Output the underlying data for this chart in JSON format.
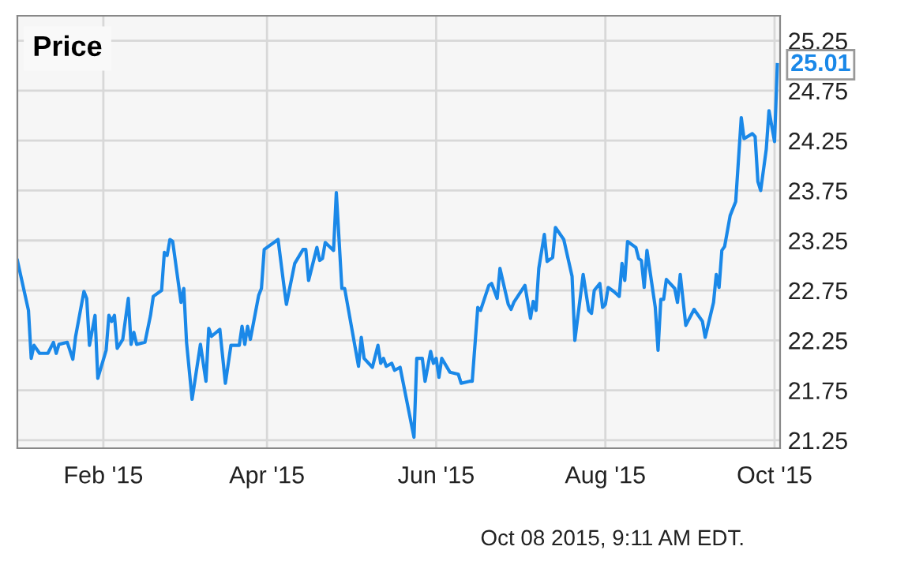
{
  "chart_data": {
    "type": "line",
    "title": "Price",
    "x": [
      "2015-01-01",
      "2015-01-05",
      "2015-01-06",
      "2015-01-07",
      "2015-01-09",
      "2015-01-12",
      "2015-01-14",
      "2015-01-15",
      "2015-01-16",
      "2015-01-19",
      "2015-01-21",
      "2015-01-22",
      "2015-01-25",
      "2015-01-26",
      "2015-01-27",
      "2015-01-29",
      "2015-01-30",
      "2015-02-02",
      "2015-02-03",
      "2015-02-04",
      "2015-02-05",
      "2015-02-06",
      "2015-02-08",
      "2015-02-10",
      "2015-02-11",
      "2015-02-12",
      "2015-02-13",
      "2015-02-16",
      "2015-02-18",
      "2015-02-19",
      "2015-02-22",
      "2015-02-23",
      "2015-02-24",
      "2015-02-25",
      "2015-02-26",
      "2015-03-01",
      "2015-03-02",
      "2015-03-03",
      "2015-03-05",
      "2015-03-08",
      "2015-03-10",
      "2015-03-11",
      "2015-03-12",
      "2015-03-15",
      "2015-03-17",
      "2015-03-19",
      "2015-03-22",
      "2015-03-23",
      "2015-03-24",
      "2015-03-25",
      "2015-03-26",
      "2015-03-29",
      "2015-03-30",
      "2015-03-31",
      "2015-04-05",
      "2015-04-07",
      "2015-04-08",
      "2015-04-11",
      "2015-04-14",
      "2015-04-15",
      "2015-04-16",
      "2015-04-19",
      "2015-04-20",
      "2015-04-21",
      "2015-04-22",
      "2015-04-25",
      "2015-04-26",
      "2015-04-28",
      "2015-04-29",
      "2015-05-04",
      "2015-05-05",
      "2015-05-06",
      "2015-05-09",
      "2015-05-11",
      "2015-05-12",
      "2015-05-13",
      "2015-05-14",
      "2015-05-16",
      "2015-05-17",
      "2015-05-19",
      "2015-05-24",
      "2015-05-25",
      "2015-05-27",
      "2015-05-28",
      "2015-05-30",
      "2015-05-31",
      "2015-06-01",
      "2015-06-02",
      "2015-06-03",
      "2015-06-06",
      "2015-06-09",
      "2015-06-10",
      "2015-06-13",
      "2015-06-14",
      "2015-06-16",
      "2015-06-17",
      "2015-06-20",
      "2015-06-21",
      "2015-06-23",
      "2015-06-24",
      "2015-06-27",
      "2015-06-28",
      "2015-06-29",
      "2015-07-03",
      "2015-07-05",
      "2015-07-06",
      "2015-07-07",
      "2015-07-08",
      "2015-07-10",
      "2015-07-11",
      "2015-07-13",
      "2015-07-14",
      "2015-07-17",
      "2015-07-20",
      "2015-07-21",
      "2015-07-24",
      "2015-07-26",
      "2015-07-27",
      "2015-07-28",
      "2015-07-30",
      "2015-07-31",
      "2015-08-01",
      "2015-08-02",
      "2015-08-04",
      "2015-08-06",
      "2015-08-07",
      "2015-08-08",
      "2015-08-09",
      "2015-08-12",
      "2015-08-13",
      "2015-08-14",
      "2015-08-15",
      "2015-08-16",
      "2015-08-19",
      "2015-08-20",
      "2015-08-21",
      "2015-08-22",
      "2015-08-23",
      "2015-08-26",
      "2015-08-27",
      "2015-08-28",
      "2015-08-30",
      "2015-09-02",
      "2015-09-05",
      "2015-09-06",
      "2015-09-09",
      "2015-09-10",
      "2015-09-11",
      "2015-09-12",
      "2015-09-13",
      "2015-09-15",
      "2015-09-17",
      "2015-09-19",
      "2015-09-20",
      "2015-09-23",
      "2015-09-24",
      "2015-09-25",
      "2015-09-26",
      "2015-09-28",
      "2015-09-29",
      "2015-10-01",
      "2015-10-02"
    ],
    "values": [
      23.05,
      22.55,
      22.07,
      22.2,
      22.12,
      22.12,
      22.23,
      22.12,
      22.21,
      22.23,
      22.06,
      22.29,
      22.74,
      22.67,
      22.2,
      22.5,
      21.87,
      22.15,
      22.5,
      22.44,
      22.5,
      22.17,
      22.26,
      22.67,
      22.21,
      22.33,
      22.21,
      22.23,
      22.5,
      22.69,
      22.75,
      23.13,
      23.1,
      23.26,
      23.24,
      22.63,
      22.77,
      22.23,
      21.66,
      22.21,
      21.84,
      22.37,
      22.29,
      22.36,
      21.82,
      22.2,
      22.2,
      22.39,
      22.21,
      22.39,
      22.26,
      22.7,
      22.77,
      23.16,
      23.26,
      22.82,
      22.61,
      23.02,
      23.16,
      23.16,
      22.85,
      23.18,
      23.05,
      23.07,
      23.23,
      23.15,
      23.73,
      22.77,
      22.77,
      21.99,
      22.28,
      22.07,
      21.98,
      22.2,
      22.02,
      22.07,
      21.99,
      22.02,
      21.95,
      21.98,
      21.28,
      22.07,
      22.07,
      21.84,
      22.14,
      22.02,
      22.07,
      21.88,
      22.07,
      21.93,
      21.91,
      21.82,
      21.84,
      21.84,
      22.58,
      22.55,
      22.8,
      22.82,
      22.67,
      22.97,
      22.61,
      22.56,
      22.63,
      22.8,
      22.47,
      22.64,
      22.55,
      22.97,
      23.31,
      23.04,
      23.08,
      23.38,
      23.26,
      22.89,
      22.25,
      22.91,
      22.55,
      22.52,
      22.75,
      22.82,
      22.58,
      22.61,
      22.78,
      22.74,
      22.69,
      23.02,
      22.85,
      23.24,
      23.18,
      23.07,
      23.05,
      22.78,
      23.15,
      22.58,
      22.15,
      22.66,
      22.66,
      22.86,
      22.77,
      22.63,
      22.91,
      22.4,
      22.56,
      22.44,
      22.28,
      22.63,
      22.91,
      22.78,
      23.15,
      23.19,
      23.5,
      23.64,
      24.48,
      24.27,
      24.32,
      24.29,
      23.84,
      23.75,
      24.16,
      24.55,
      24.24,
      25.01
    ],
    "color": "#1a88e8",
    "xlim": [
      "2015-01-01",
      "2015-10-03"
    ],
    "xticks": [
      {
        "value": "2015-02-01",
        "label": "Feb '15"
      },
      {
        "value": "2015-04-01",
        "label": "Apr '15"
      },
      {
        "value": "2015-06-01",
        "label": "Jun '15"
      },
      {
        "value": "2015-08-01",
        "label": "Aug '15"
      },
      {
        "value": "2015-10-01",
        "label": "Oct '15"
      }
    ],
    "ylim": [
      21.17,
      25.5
    ],
    "yticks": [
      21.25,
      21.75,
      22.25,
      22.75,
      23.25,
      23.75,
      24.25,
      24.75,
      25.25
    ],
    "grid": true,
    "annotations": [
      {
        "text": "25.01",
        "x": "2015-10-02",
        "y": 25.01
      },
      "Oct 08 2015, 9:11 AM EDT."
    ]
  }
}
